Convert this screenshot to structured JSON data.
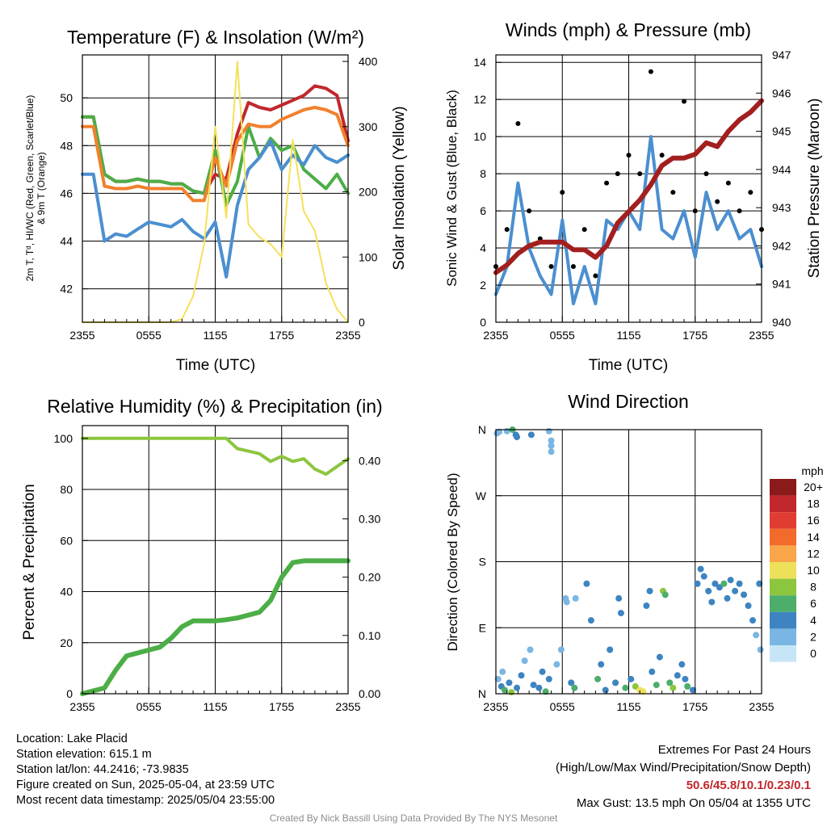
{
  "panels": {
    "temperature": {
      "title": "Temperature (F) & Insolation (W/m²)",
      "ylabel_left_1": "2m T, Tᵈ, HI/WC (Red, Green, Scarlet/Blue)",
      "ylabel_left_2": "& 9m T (Orange)",
      "ylabel_right": "Solar Insolation (Yellow)",
      "xlabel": "Time (UTC)"
    },
    "winds": {
      "title": "Winds (mph) & Pressure (mb)",
      "ylabel_left": "Sonic Wind & Gust (Blue, Black)",
      "ylabel_right": "Station Pressure (Maroon)",
      "xlabel": "Time (UTC)"
    },
    "humidity": {
      "title": "Relative Humidity (%) & Precipitation (in)",
      "ylabel_left": "Percent & Precipitation"
    },
    "direction": {
      "title": "Wind Direction",
      "ylabel_left": "Direction (Colored By Speed)",
      "legend_title": "mph"
    }
  },
  "station": {
    "location": "Location: Lake Placid",
    "elevation": "Station elevation: 615.1 m",
    "latlon": "Station lat/lon: 44.2416; -73.9835",
    "created": "Figure created on Sun, 2025-05-04, at 23:59 UTC",
    "recent": "Most recent data timestamp: 2025/05/04 23:55:00"
  },
  "extremes": {
    "heading": "Extremes For Past 24 Hours",
    "subheading": "(High/Low/Max Wind/Precipitation/Snow Depth)",
    "value": "50.6/45.8/10.1/0.23/0.1",
    "max_gust": "Max Gust: 13.5 mph On 05/04 at 1355 UTC"
  },
  "credit": "Created By Nick Bassill Using Data Provided By The NYS Mesonet",
  "chart_data": [
    {
      "type": "line",
      "title": "Temperature (F) & Insolation (W/m²)",
      "xlabel": "Time (UTC)",
      "ylabel": "2m T, Tᵈ, HI/WC (Red, Green, Scarlet/Blue) & 9m T (Orange)",
      "y2label": "Solar Insolation (Yellow)",
      "x": [
        0,
        1,
        2,
        3,
        4,
        5,
        6,
        7,
        8,
        9,
        10,
        11,
        12,
        13,
        14,
        15,
        16,
        17,
        18,
        19,
        20,
        21,
        22,
        23,
        24
      ],
      "xticks": [
        0,
        6,
        12,
        18,
        24
      ],
      "xticklabels": [
        "2355",
        "0555",
        "1155",
        "1755",
        "2355"
      ],
      "ylim": [
        40.6,
        51.8
      ],
      "yticks": [
        42,
        44,
        46,
        48,
        50
      ],
      "y2lim": [
        0,
        410
      ],
      "y2ticks": [
        0,
        100,
        200,
        300,
        400
      ],
      "series": [
        {
          "name": "2m T",
          "color": "#c1272d",
          "axis": "left",
          "values": [
            49.2,
            49.2,
            46.8,
            46.5,
            46.5,
            46.6,
            46.5,
            46.5,
            46.4,
            46.4,
            46.1,
            46.0,
            46.8,
            46.6,
            48.5,
            49.8,
            49.6,
            49.5,
            49.7,
            49.9,
            50.1,
            50.5,
            50.4,
            50.1,
            48.2
          ]
        },
        {
          "name": "Tᵈ",
          "color": "#4cae46",
          "axis": "left",
          "values": [
            49.2,
            49.2,
            46.8,
            46.5,
            46.5,
            46.6,
            46.5,
            46.5,
            46.4,
            46.4,
            46.1,
            46.0,
            47.8,
            45.5,
            46.5,
            48.8,
            47.5,
            48.3,
            47.8,
            48.0,
            47.0,
            46.6,
            46.2,
            46.8,
            46.0
          ]
        },
        {
          "name": "HI/WC",
          "color": "#4b8fd0",
          "axis": "left",
          "values": [
            46.8,
            46.8,
            44.0,
            44.3,
            44.2,
            44.5,
            44.8,
            44.7,
            44.6,
            44.9,
            44.4,
            44.1,
            44.8,
            42.5,
            45.5,
            47.0,
            47.5,
            48.2,
            47.0,
            47.6,
            47.2,
            48.0,
            47.5,
            47.3,
            47.6
          ]
        },
        {
          "name": "9m T",
          "color": "#f1812d",
          "axis": "left",
          "values": [
            48.8,
            48.8,
            46.3,
            46.2,
            46.2,
            46.3,
            46.2,
            46.2,
            46.2,
            46.2,
            45.7,
            45.7,
            47.5,
            46.3,
            48.2,
            48.9,
            48.8,
            48.8,
            49.1,
            49.3,
            49.5,
            49.6,
            49.5,
            49.3,
            48.0
          ]
        },
        {
          "name": "Solar Insolation",
          "color": "#f5e05a",
          "axis": "right",
          "values": [
            0,
            0,
            0,
            0,
            0,
            0,
            0,
            0,
            0,
            5,
            40,
            120,
            300,
            160,
            400,
            150,
            130,
            120,
            100,
            280,
            170,
            140,
            60,
            20,
            0
          ]
        }
      ]
    },
    {
      "type": "line",
      "title": "Winds (mph) & Pressure (mb)",
      "xlabel": "Time (UTC)",
      "ylabel": "Sonic Wind & Gust (Blue, Black)",
      "y2label": "Station Pressure (Maroon)",
      "x": [
        0,
        1,
        2,
        3,
        4,
        5,
        6,
        7,
        8,
        9,
        10,
        11,
        12,
        13,
        14,
        15,
        16,
        17,
        18,
        19,
        20,
        21,
        22,
        23,
        24
      ],
      "xticks": [
        0,
        6,
        12,
        18,
        24
      ],
      "xticklabels": [
        "2355",
        "0555",
        "1155",
        "1755",
        "2355"
      ],
      "ylim": [
        0,
        14.4
      ],
      "yticks": [
        0,
        2,
        4,
        6,
        8,
        10,
        12,
        14
      ],
      "y2lim": [
        940,
        947
      ],
      "y2ticks": [
        940,
        941,
        942,
        943,
        944,
        945,
        946,
        947
      ],
      "series": [
        {
          "name": "Sonic Wind",
          "color": "#4b8fd0",
          "axis": "left",
          "values": [
            1.5,
            3.0,
            7.5,
            4.0,
            2.5,
            1.5,
            5.5,
            1.0,
            3.0,
            1.0,
            5.5,
            5.0,
            6.0,
            5.0,
            10.0,
            5.0,
            4.5,
            6.0,
            3.5,
            7.0,
            5.0,
            6.0,
            4.5,
            5.0,
            3.0
          ]
        },
        {
          "name": "Gust",
          "color": "#000000",
          "axis": "left",
          "marker": "dot",
          "values": [
            3.0,
            5.0,
            10.7,
            6.0,
            4.5,
            3.0,
            7.0,
            3.0,
            5.0,
            2.5,
            7.5,
            8.0,
            9.0,
            8.0,
            13.5,
            9.0,
            7.0,
            11.9,
            6.0,
            8.0,
            6.5,
            7.5,
            6.0,
            7.0,
            5.0
          ]
        },
        {
          "name": "Station Pressure",
          "color": "#a31f1f",
          "axis": "right",
          "values": [
            941.3,
            941.5,
            941.8,
            942.0,
            942.1,
            942.1,
            942.1,
            941.9,
            941.9,
            941.7,
            942.0,
            942.6,
            942.9,
            943.2,
            943.6,
            944.1,
            944.3,
            944.3,
            944.4,
            944.7,
            944.6,
            945.0,
            945.3,
            945.5,
            945.8
          ]
        }
      ]
    },
    {
      "type": "line",
      "title": "Relative Humidity (%) & Precipitation (in)",
      "ylabel": "Percent & Precipitation",
      "x": [
        0,
        1,
        2,
        3,
        4,
        5,
        6,
        7,
        8,
        9,
        10,
        11,
        12,
        13,
        14,
        15,
        16,
        17,
        18,
        19,
        20,
        21,
        22,
        23,
        24
      ],
      "xticks": [
        0,
        6,
        12,
        18,
        24
      ],
      "xticklabels": [
        "2355",
        "0555",
        "1155",
        "1755",
        "2355"
      ],
      "ylim": [
        0,
        105
      ],
      "yticks": [
        0,
        20,
        40,
        60,
        80,
        100
      ],
      "y2lim": [
        0,
        0.46
      ],
      "y2ticks": [
        0.0,
        0.1,
        0.2,
        0.3,
        0.4
      ],
      "y2ticklabels": [
        "0.00",
        "0.10",
        "0.20",
        "0.30",
        "0.40"
      ],
      "series": [
        {
          "name": "Relative Humidity",
          "color": "#8cc63f",
          "axis": "left",
          "values": [
            100,
            100,
            100,
            100,
            100,
            100,
            100,
            100,
            100,
            100,
            100,
            100,
            100,
            100,
            96,
            95,
            94,
            91,
            93,
            91,
            92,
            88,
            86,
            89,
            92
          ]
        },
        {
          "name": "Precipitation",
          "color": "#4cae46",
          "axis": "right",
          "values": [
            0.0,
            0.005,
            0.01,
            0.04,
            0.065,
            0.07,
            0.075,
            0.08,
            0.095,
            0.115,
            0.125,
            0.125,
            0.125,
            0.127,
            0.13,
            0.135,
            0.14,
            0.16,
            0.2,
            0.225,
            0.228,
            0.228,
            0.228,
            0.228,
            0.228
          ]
        }
      ]
    },
    {
      "type": "scatter",
      "title": "Wind Direction",
      "ylabel": "Direction (Colored By Speed)",
      "xticks": [
        0,
        6,
        12,
        18,
        24
      ],
      "xticklabels": [
        "2355",
        "0555",
        "1155",
        "1755",
        "2355"
      ],
      "ylim": [
        0,
        360
      ],
      "yticks": [
        0,
        90,
        180,
        270,
        360
      ],
      "yticklabels": [
        "N",
        "E",
        "S",
        "W",
        "N"
      ],
      "colorbar": {
        "title": "mph",
        "labels": [
          "20+",
          "18",
          "16",
          "14",
          "12",
          "10",
          "8",
          "6",
          "4",
          "2",
          "0"
        ],
        "colors": [
          "#8b1a1a",
          "#c1272d",
          "#e03c31",
          "#f26b2b",
          "#f9a64a",
          "#ede15b",
          "#8cc63f",
          "#4cae6a",
          "#3d84c1",
          "#7ab6e3",
          "#c6e6f7"
        ]
      },
      "points": [
        {
          "x": 0.1,
          "y": 355,
          "speed": 1
        },
        {
          "x": 0.3,
          "y": 357,
          "speed": 1
        },
        {
          "x": 1.0,
          "y": 358,
          "speed": 2
        },
        {
          "x": 1.5,
          "y": 360,
          "speed": 6
        },
        {
          "x": 1.8,
          "y": 353,
          "speed": 4
        },
        {
          "x": 1.9,
          "y": 350,
          "speed": 4
        },
        {
          "x": 3.2,
          "y": 353,
          "speed": 4
        },
        {
          "x": 4.8,
          "y": 358,
          "speed": 1
        },
        {
          "x": 5.0,
          "y": 345,
          "speed": 1
        },
        {
          "x": 5.0,
          "y": 338,
          "speed": 1
        },
        {
          "x": 5.0,
          "y": 330,
          "speed": 1
        },
        {
          "x": 0.2,
          "y": 20,
          "speed": 2
        },
        {
          "x": 0.5,
          "y": 10,
          "speed": 4
        },
        {
          "x": 0.6,
          "y": 30,
          "speed": 1
        },
        {
          "x": 0.8,
          "y": 5,
          "speed": 6
        },
        {
          "x": 1.2,
          "y": 15,
          "speed": 3
        },
        {
          "x": 1.4,
          "y": 2,
          "speed": 8
        },
        {
          "x": 1.9,
          "y": 8,
          "speed": 4
        },
        {
          "x": 2.3,
          "y": 25,
          "speed": 3
        },
        {
          "x": 2.6,
          "y": 45,
          "speed": 1
        },
        {
          "x": 3.1,
          "y": 60,
          "speed": 1
        },
        {
          "x": 3.4,
          "y": 12,
          "speed": 4
        },
        {
          "x": 3.9,
          "y": 8,
          "speed": 3
        },
        {
          "x": 4.2,
          "y": 30,
          "speed": 4
        },
        {
          "x": 4.5,
          "y": 3,
          "speed": 6
        },
        {
          "x": 4.8,
          "y": 20,
          "speed": 3
        },
        {
          "x": 5.5,
          "y": 40,
          "speed": 2
        },
        {
          "x": 5.9,
          "y": 60,
          "speed": 2
        },
        {
          "x": 6.3,
          "y": 130,
          "speed": 1
        },
        {
          "x": 6.4,
          "y": 125,
          "speed": 2
        },
        {
          "x": 6.8,
          "y": 15,
          "speed": 4
        },
        {
          "x": 7.1,
          "y": 8,
          "speed": 5
        },
        {
          "x": 7.2,
          "y": 130,
          "speed": 2
        },
        {
          "x": 8.2,
          "y": 150,
          "speed": 3
        },
        {
          "x": 8.6,
          "y": 100,
          "speed": 3
        },
        {
          "x": 9.2,
          "y": 20,
          "speed": 6
        },
        {
          "x": 9.5,
          "y": 40,
          "speed": 4
        },
        {
          "x": 9.9,
          "y": 5,
          "speed": 4
        },
        {
          "x": 10.3,
          "y": 60,
          "speed": 4
        },
        {
          "x": 10.8,
          "y": 15,
          "speed": 4
        },
        {
          "x": 11.1,
          "y": 130,
          "speed": 4
        },
        {
          "x": 11.3,
          "y": 110,
          "speed": 3
        },
        {
          "x": 11.7,
          "y": 8,
          "speed": 6
        },
        {
          "x": 12.2,
          "y": 20,
          "speed": 4
        },
        {
          "x": 12.6,
          "y": 10,
          "speed": 8
        },
        {
          "x": 13.0,
          "y": 5,
          "speed": 9
        },
        {
          "x": 13.3,
          "y": 3,
          "speed": 10
        },
        {
          "x": 13.6,
          "y": 120,
          "speed": 3
        },
        {
          "x": 13.9,
          "y": 140,
          "speed": 4
        },
        {
          "x": 14.1,
          "y": 30,
          "speed": 4
        },
        {
          "x": 14.5,
          "y": 12,
          "speed": 6
        },
        {
          "x": 14.8,
          "y": 50,
          "speed": 3
        },
        {
          "x": 15.1,
          "y": 140,
          "speed": 7
        },
        {
          "x": 15.3,
          "y": 135,
          "speed": 6
        },
        {
          "x": 15.7,
          "y": 15,
          "speed": 6
        },
        {
          "x": 16.0,
          "y": 8,
          "speed": 7
        },
        {
          "x": 16.4,
          "y": 25,
          "speed": 4
        },
        {
          "x": 16.8,
          "y": 40,
          "speed": 3
        },
        {
          "x": 17.1,
          "y": 20,
          "speed": 4
        },
        {
          "x": 17.3,
          "y": 10,
          "speed": 6
        },
        {
          "x": 17.8,
          "y": 5,
          "speed": 4
        },
        {
          "x": 18.2,
          "y": 150,
          "speed": 4
        },
        {
          "x": 18.5,
          "y": 170,
          "speed": 4
        },
        {
          "x": 18.8,
          "y": 160,
          "speed": 3
        },
        {
          "x": 19.2,
          "y": 140,
          "speed": 4
        },
        {
          "x": 19.5,
          "y": 125,
          "speed": 4
        },
        {
          "x": 19.8,
          "y": 150,
          "speed": 4
        },
        {
          "x": 20.2,
          "y": 145,
          "speed": 4
        },
        {
          "x": 20.6,
          "y": 150,
          "speed": 6
        },
        {
          "x": 20.9,
          "y": 130,
          "speed": 4
        },
        {
          "x": 21.2,
          "y": 155,
          "speed": 4
        },
        {
          "x": 21.6,
          "y": 140,
          "speed": 4
        },
        {
          "x": 22.0,
          "y": 150,
          "speed": 3
        },
        {
          "x": 22.4,
          "y": 135,
          "speed": 4
        },
        {
          "x": 22.8,
          "y": 120,
          "speed": 4
        },
        {
          "x": 23.2,
          "y": 100,
          "speed": 3
        },
        {
          "x": 23.5,
          "y": 80,
          "speed": 2
        },
        {
          "x": 23.8,
          "y": 150,
          "speed": 4
        },
        {
          "x": 23.9,
          "y": 60,
          "speed": 2
        }
      ]
    }
  ]
}
